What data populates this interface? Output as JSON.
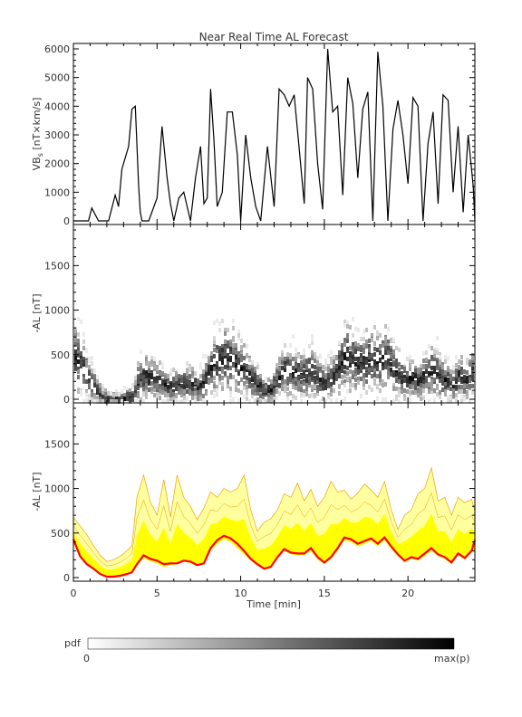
{
  "chart_data": {
    "type": "line",
    "title": "Near Real Time AL Forecast",
    "xlabel": "Time [min]",
    "xlim": [
      0,
      24
    ],
    "x_ticks": [
      "0",
      "5",
      "10",
      "15",
      "20"
    ],
    "panels": [
      {
        "id": "vbs",
        "ylabel_main": "VB",
        "ylabel_sub": "s",
        "ylabel_rest": " [nT×km/s]",
        "ylim": [
          0,
          6000
        ],
        "y_ticks": [
          "0",
          "1000",
          "2000",
          "3000",
          "4000",
          "5000",
          "6000"
        ],
        "type": "line",
        "series": [
          {
            "x": [
              0.0,
              0.9,
              1.1,
              1.5,
              2.1,
              2.5,
              2.7,
              2.9,
              3.3,
              3.5,
              3.7,
              3.9,
              4.0,
              4.1,
              4.5,
              5.0,
              5.3,
              5.6,
              5.8,
              6.0,
              6.3,
              6.6,
              7.0,
              7.3,
              7.6,
              7.8,
              8.0,
              8.2,
              8.4,
              8.6,
              8.9,
              9.2,
              9.5,
              9.8,
              10.0,
              10.3,
              10.6,
              10.9,
              11.2,
              11.6,
              12.0,
              12.3,
              12.6,
              12.9,
              13.2,
              13.5,
              13.8,
              14.0,
              14.3,
              14.6,
              14.9,
              15.2,
              15.5,
              15.8,
              16.1,
              16.4,
              16.7,
              17.0,
              17.3,
              17.6,
              17.9,
              18.2,
              18.5,
              18.8,
              19.1,
              19.4,
              19.7,
              20.0,
              20.3,
              20.6,
              20.9,
              21.2,
              21.5,
              21.8,
              22.1,
              22.4,
              22.7,
              23.0,
              23.3,
              23.6,
              23.9,
              24.0
            ],
            "y": [
              0,
              0,
              450,
              0,
              0,
              900,
              500,
              1800,
              2600,
              3900,
              4000,
              1200,
              300,
              0,
              0,
              800,
              3300,
              1500,
              600,
              0,
              800,
              1000,
              0,
              1500,
              2600,
              600,
              800,
              4600,
              2800,
              500,
              1000,
              3800,
              3800,
              2300,
              0,
              3000,
              1500,
              500,
              0,
              2600,
              500,
              4600,
              4400,
              4000,
              4400,
              2500,
              600,
              5000,
              4600,
              2000,
              400,
              6000,
              3800,
              4000,
              900,
              5000,
              4100,
              1500,
              3900,
              4500,
              0,
              5900,
              4000,
              0,
              3200,
              4200,
              3000,
              1300,
              4300,
              4000,
              0,
              2700,
              3800,
              600,
              4400,
              4200,
              1000,
              3300,
              300,
              3000,
              1200,
              0
            ]
          }
        ]
      },
      {
        "id": "pdf",
        "ylabel": "-AL [nT]",
        "ylim": [
          0,
          1900
        ],
        "y_ticks": [
          "0",
          "500",
          "1000",
          "1500"
        ],
        "type": "heatmap",
        "centers": [
          [
            0,
            500
          ],
          [
            0.4,
            420
          ],
          [
            0.8,
            260
          ],
          [
            1.2,
            160
          ],
          [
            1.6,
            60
          ],
          [
            2.0,
            20
          ],
          [
            2.4,
            10
          ],
          [
            2.8,
            20
          ],
          [
            3.2,
            40
          ],
          [
            3.5,
            60
          ],
          [
            3.8,
            220
          ],
          [
            4.2,
            300
          ],
          [
            4.6,
            260
          ],
          [
            5.0,
            240
          ],
          [
            5.4,
            180
          ],
          [
            5.8,
            160
          ],
          [
            6.2,
            180
          ],
          [
            6.6,
            200
          ],
          [
            7.0,
            190
          ],
          [
            7.4,
            150
          ],
          [
            7.8,
            220
          ],
          [
            8.2,
            400
          ],
          [
            8.6,
            470
          ],
          [
            9.0,
            490
          ],
          [
            9.4,
            480
          ],
          [
            9.8,
            400
          ],
          [
            10.2,
            350
          ],
          [
            10.6,
            260
          ],
          [
            11.0,
            180
          ],
          [
            11.4,
            110
          ],
          [
            11.8,
            140
          ],
          [
            12.2,
            260
          ],
          [
            12.6,
            360
          ],
          [
            13.0,
            320
          ],
          [
            13.4,
            310
          ],
          [
            13.8,
            300
          ],
          [
            14.2,
            360
          ],
          [
            14.6,
            250
          ],
          [
            15.0,
            200
          ],
          [
            15.4,
            260
          ],
          [
            15.8,
            380
          ],
          [
            16.2,
            500
          ],
          [
            16.6,
            470
          ],
          [
            17.0,
            420
          ],
          [
            17.4,
            450
          ],
          [
            17.8,
            480
          ],
          [
            18.2,
            430
          ],
          [
            18.6,
            500
          ],
          [
            19.0,
            390
          ],
          [
            19.4,
            300
          ],
          [
            19.8,
            230
          ],
          [
            20.2,
            270
          ],
          [
            20.6,
            240
          ],
          [
            21.0,
            300
          ],
          [
            21.4,
            360
          ],
          [
            21.8,
            280
          ],
          [
            22.2,
            250
          ],
          [
            22.6,
            180
          ],
          [
            23.0,
            290
          ],
          [
            23.4,
            250
          ],
          [
            23.8,
            330
          ]
        ]
      },
      {
        "id": "band",
        "ylabel": "-AL [nT]",
        "ylim": [
          0,
          1900
        ],
        "y_ticks": [
          "0",
          "500",
          "1000",
          "1500"
        ],
        "type": "area",
        "x": [
          0,
          0.4,
          0.8,
          1.2,
          1.6,
          2.0,
          2.4,
          2.8,
          3.2,
          3.5,
          3.8,
          4.2,
          4.6,
          5.0,
          5.4,
          5.8,
          6.2,
          6.6,
          7.0,
          7.4,
          7.8,
          8.2,
          8.6,
          9.0,
          9.4,
          9.8,
          10.2,
          10.6,
          11.0,
          11.4,
          11.8,
          12.2,
          12.6,
          13.0,
          13.4,
          13.8,
          14.2,
          14.6,
          15.0,
          15.4,
          15.8,
          16.2,
          16.6,
          17.0,
          17.4,
          17.8,
          18.2,
          18.6,
          19.0,
          19.4,
          19.8,
          20.2,
          20.6,
          21.0,
          21.4,
          21.8,
          22.2,
          22.6,
          23.0,
          23.4,
          23.8,
          24.0
        ],
        "min": [
          380,
          220,
          140,
          90,
          40,
          15,
          10,
          20,
          40,
          60,
          130,
          220,
          180,
          160,
          120,
          140,
          150,
          180,
          160,
          130,
          150,
          300,
          380,
          430,
          400,
          330,
          260,
          190,
          140,
          90,
          110,
          210,
          300,
          260,
          250,
          250,
          300,
          200,
          150,
          210,
          300,
          420,
          400,
          350,
          380,
          410,
          350,
          420,
          320,
          240,
          170,
          210,
          190,
          240,
          300,
          240,
          210,
          150,
          250,
          200,
          280,
          300
        ],
        "max": [
          680,
          580,
          480,
          360,
          250,
          180,
          200,
          240,
          300,
          360,
          900,
          1150,
          850,
          700,
          1100,
          680,
          1150,
          900,
          800,
          650,
          780,
          960,
          900,
          1000,
          960,
          1000,
          1150,
          760,
          520,
          620,
          660,
          760,
          940,
          900,
          1060,
          860,
          990,
          800,
          900,
          1080,
          960,
          980,
          880,
          950,
          1050,
          980,
          900,
          1080,
          760,
          540,
          700,
          760,
          940,
          1000,
          1230,
          860,
          900,
          700,
          900,
          840,
          880,
          750
        ],
        "forecast": [
          430,
          240,
          150,
          100,
          40,
          10,
          10,
          20,
          40,
          60,
          150,
          250,
          210,
          190,
          150,
          160,
          160,
          190,
          180,
          140,
          160,
          330,
          420,
          470,
          440,
          380,
          300,
          210,
          150,
          100,
          120,
          230,
          320,
          280,
          270,
          270,
          330,
          230,
          170,
          230,
          330,
          450,
          430,
          380,
          410,
          440,
          380,
          450,
          350,
          260,
          190,
          230,
          210,
          270,
          330,
          260,
          230,
          170,
          270,
          220,
          300,
          420
        ]
      }
    ],
    "colorbar": {
      "label": "pdf",
      "min_label": "0",
      "max_label": "max(p)"
    },
    "colors": {
      "band_fill": "#ffff00",
      "band_edge": "#f0a000",
      "forecast_line": "#ff0000",
      "heatmap_max": "#000000"
    }
  }
}
